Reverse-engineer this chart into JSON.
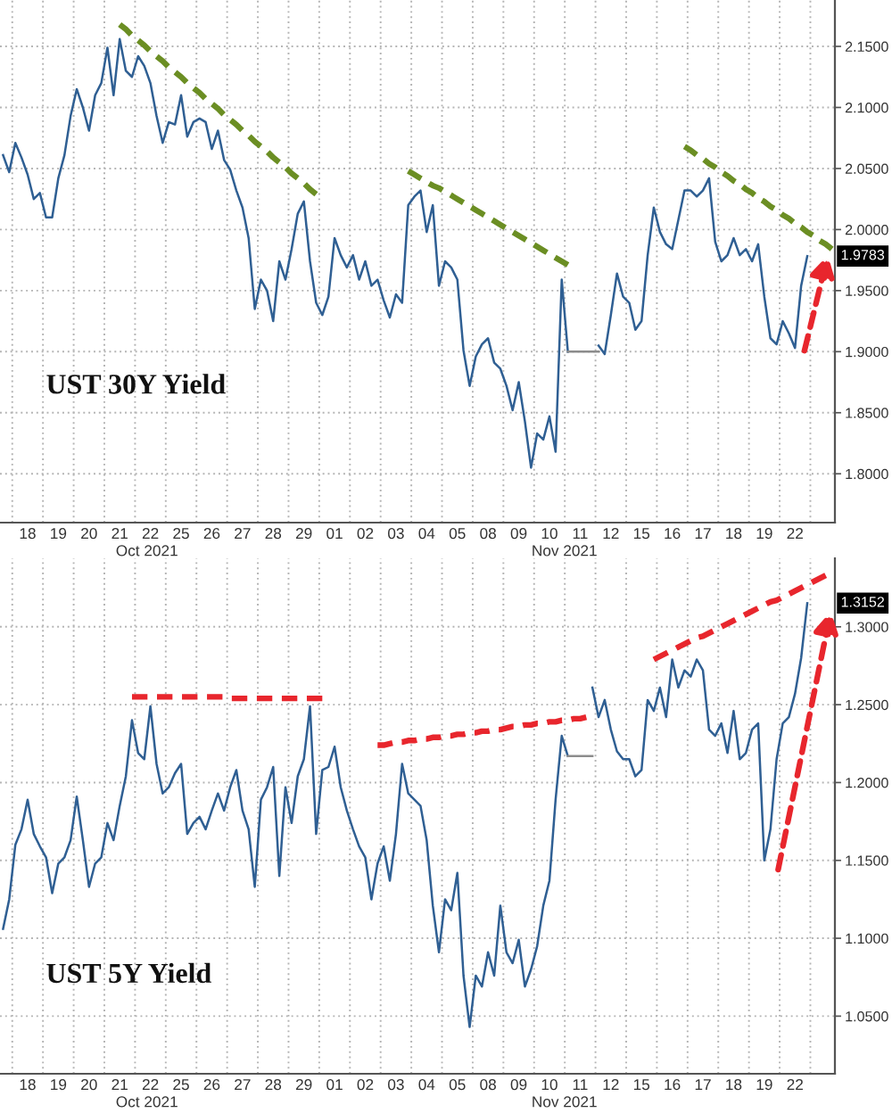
{
  "chart_data": [
    {
      "type": "line",
      "title": "UST 30Y Yield",
      "ylim": [
        1.76,
        2.188
      ],
      "grid": true,
      "categories": [
        null,
        null,
        null,
        null,
        "18",
        null,
        null,
        null,
        null,
        "19",
        null,
        null,
        null,
        null,
        "20",
        null,
        null,
        null,
        null,
        "21",
        null,
        null,
        null,
        null,
        "22",
        null,
        null,
        null,
        null,
        "25",
        null,
        null,
        null,
        null,
        "26",
        null,
        null,
        null,
        null,
        "27",
        null,
        null,
        null,
        null,
        "28",
        null,
        null,
        null,
        null,
        "29",
        null,
        null,
        null,
        null,
        "01",
        null,
        null,
        null,
        null,
        "02",
        null,
        null,
        null,
        null,
        "03",
        null,
        null,
        null,
        null,
        "04",
        null,
        null,
        null,
        null,
        "05",
        null,
        null,
        null,
        null,
        "08",
        null,
        null,
        null,
        null,
        "09",
        null,
        null,
        null,
        null,
        "10",
        null,
        null,
        null,
        null,
        "11",
        null,
        null,
        null,
        null,
        "12",
        null,
        null,
        null,
        null,
        "15",
        null,
        null,
        null,
        null,
        "16",
        null,
        null,
        null,
        null,
        "17",
        null,
        null,
        null,
        null,
        "18",
        null,
        null,
        null,
        null,
        "19",
        null,
        null,
        null,
        null,
        "22",
        null,
        null,
        null,
        null,
        null,
        null
      ],
      "yticks": [
        {
          "value": 1.8,
          "label": "1.8000"
        },
        {
          "value": 1.85,
          "label": "1.8500"
        },
        {
          "value": 1.9,
          "label": "1.9000"
        },
        {
          "value": 1.95,
          "label": "1.9500"
        },
        {
          "value": 2.0,
          "label": "2.0000"
        },
        {
          "value": 2.05,
          "label": "2.0500"
        },
        {
          "value": 2.1,
          "label": "2.1000"
        },
        {
          "value": 2.15,
          "label": "2.1500"
        }
      ],
      "annotations": [
        {
          "text": "1.9783",
          "y": 1.9783
        },
        "Oct 2021",
        "Nov 2021"
      ],
      "series": [
        {
          "color": "#2f5f93",
          "values": [
            2.061,
            2.047,
            2.071,
            2.059,
            2.045,
            2.025,
            2.03,
            2.01,
            2.01,
            2.042,
            2.061,
            2.093,
            2.115,
            2.1,
            2.081,
            2.11,
            2.12,
            2.149,
            2.11,
            2.156,
            2.13,
            2.125,
            2.142,
            2.134,
            2.12,
            2.093,
            2.071,
            2.088,
            2.086,
            2.11,
            2.076,
            2.088,
            2.091,
            2.088,
            2.066,
            2.081,
            2.057,
            2.049,
            2.032,
            2.018,
            1.993,
            1.935,
            1.959,
            1.95,
            1.925,
            1.974,
            1.959,
            1.984,
            2.013,
            2.023,
            1.974,
            1.94,
            1.93,
            1.945,
            1.993,
            1.979,
            1.969,
            1.979,
            1.959,
            1.974,
            1.954,
            1.959,
            1.942,
            1.928,
            1.947,
            1.94,
            2.02,
            2.027,
            2.032,
            1.998,
            2.02,
            1.954,
            1.974,
            1.969,
            1.959,
            1.901,
            1.872,
            1.896,
            1.906,
            1.911,
            1.891,
            1.886,
            1.872,
            1.852,
            1.875,
            1.843,
            1.805,
            1.833,
            1.828,
            1.847,
            1.818,
            1.959,
            1.9,
            null,
            null,
            null,
            null,
            1.905,
            1.898,
            1.93,
            1.964,
            1.945,
            1.94,
            1.918,
            1.925,
            1.979,
            2.018,
            1.998,
            1.988,
            1.984,
            2.008,
            2.032,
            2.032,
            2.027,
            2.032,
            2.042,
            1.99,
            1.974,
            1.979,
            1.993,
            1.979,
            1.984,
            1.974,
            1.988,
            1.945,
            1.911,
            1.906,
            1.925,
            1.915,
            1.903,
            1.954,
            1.9783,
            null,
            null,
            null,
            null
          ]
        },
        {
          "color": "#8c8c8c",
          "values": [
            null,
            null,
            null,
            null,
            null,
            null,
            null,
            null,
            null,
            null,
            null,
            null,
            null,
            null,
            null,
            null,
            null,
            null,
            null,
            null,
            null,
            null,
            null,
            null,
            null,
            null,
            null,
            null,
            null,
            null,
            null,
            null,
            null,
            null,
            null,
            null,
            null,
            null,
            null,
            null,
            null,
            null,
            null,
            null,
            null,
            null,
            null,
            null,
            null,
            null,
            null,
            null,
            null,
            null,
            null,
            null,
            null,
            null,
            null,
            null,
            null,
            null,
            null,
            null,
            null,
            null,
            null,
            null,
            null,
            null,
            null,
            null,
            null,
            null,
            null,
            null,
            null,
            null,
            null,
            null,
            null,
            null,
            null,
            null,
            null,
            null,
            null,
            null,
            null,
            null,
            null,
            null,
            1.9,
            1.9,
            1.9,
            1.9,
            1.9,
            1.9,
            null,
            null,
            null,
            null,
            null,
            null,
            null,
            null,
            null,
            null,
            null,
            null,
            null,
            null,
            null,
            null,
            null,
            null,
            null,
            null,
            null,
            null,
            null,
            null,
            null,
            null,
            null,
            null,
            null,
            null,
            null,
            null,
            null,
            null,
            null,
            null,
            null,
            null
          ]
        },
        {
          "color": "#6b8e23",
          "line_style": "dashed",
          "values": [
            null,
            null,
            null,
            null,
            null,
            null,
            null,
            null,
            null,
            null,
            null,
            null,
            null,
            null,
            null,
            null,
            null,
            null,
            null,
            2.168,
            2.164,
            2.159,
            2.155,
            2.151,
            2.146,
            2.142,
            2.138,
            2.133,
            2.129,
            2.125,
            2.12,
            2.116,
            2.112,
            2.107,
            2.103,
            2.099,
            2.094,
            2.09,
            2.086,
            2.081,
            2.077,
            2.072,
            2.068,
            2.064,
            2.059,
            2.055,
            2.051,
            2.046,
            2.042,
            2.038,
            2.033,
            2.029,
            null,
            null,
            null,
            null,
            null,
            null,
            null,
            null,
            null,
            null,
            null,
            null,
            null,
            null,
            null,
            null,
            null,
            null,
            null,
            null,
            null,
            null,
            null,
            null,
            null,
            null,
            null,
            null,
            null,
            null,
            null,
            null,
            null,
            null,
            null,
            null,
            null,
            null,
            null,
            null,
            null,
            null,
            null,
            null,
            null,
            null,
            null,
            null,
            null,
            null,
            null,
            null,
            null,
            null,
            null,
            null,
            null,
            null,
            null,
            null,
            null,
            null,
            null,
            null,
            null,
            null,
            null,
            null,
            null,
            null,
            null,
            null,
            null,
            null,
            null,
            null,
            null,
            null,
            null,
            null,
            null,
            null,
            null,
            null
          ]
        },
        {
          "color": "#6b8e23",
          "line_style": "dashed",
          "values": [
            null,
            null,
            null,
            null,
            null,
            null,
            null,
            null,
            null,
            null,
            null,
            null,
            null,
            null,
            null,
            null,
            null,
            null,
            null,
            null,
            null,
            null,
            null,
            null,
            null,
            null,
            null,
            null,
            null,
            null,
            null,
            null,
            null,
            null,
            null,
            null,
            null,
            null,
            null,
            null,
            null,
            null,
            null,
            null,
            null,
            null,
            null,
            null,
            null,
            null,
            null,
            null,
            null,
            null,
            null,
            null,
            null,
            null,
            null,
            null,
            null,
            null,
            null,
            null,
            null,
            null,
            2.048,
            2.045,
            2.042,
            2.039,
            2.036,
            2.034,
            2.031,
            2.028,
            2.025,
            2.022,
            2.019,
            2.016,
            2.013,
            2.01,
            2.007,
            2.004,
            2.001,
            1.998,
            1.995,
            1.992,
            1.989,
            1.986,
            1.983,
            1.98,
            1.977,
            1.974,
            1.971,
            null,
            null,
            null,
            null,
            null,
            null,
            null,
            null,
            null,
            null,
            null,
            null,
            null,
            null,
            null,
            null,
            null,
            null,
            null,
            null,
            null,
            null,
            null,
            null,
            null,
            null,
            null,
            null,
            null,
            null,
            null,
            null,
            null,
            null,
            null,
            null,
            null,
            null,
            null,
            null,
            null,
            null,
            null
          ]
        },
        {
          "color": "#6b8e23",
          "line_style": "dashed",
          "values": [
            null,
            null,
            null,
            null,
            null,
            null,
            null,
            null,
            null,
            null,
            null,
            null,
            null,
            null,
            null,
            null,
            null,
            null,
            null,
            null,
            null,
            null,
            null,
            null,
            null,
            null,
            null,
            null,
            null,
            null,
            null,
            null,
            null,
            null,
            null,
            null,
            null,
            null,
            null,
            null,
            null,
            null,
            null,
            null,
            null,
            null,
            null,
            null,
            null,
            null,
            null,
            null,
            null,
            null,
            null,
            null,
            null,
            null,
            null,
            null,
            null,
            null,
            null,
            null,
            null,
            null,
            null,
            null,
            null,
            null,
            null,
            null,
            null,
            null,
            null,
            null,
            null,
            null,
            null,
            null,
            null,
            null,
            null,
            null,
            null,
            null,
            null,
            null,
            null,
            null,
            null,
            null,
            null,
            null,
            null,
            null,
            null,
            null,
            null,
            null,
            null,
            null,
            null,
            null,
            null,
            null,
            null,
            null,
            null,
            null,
            null,
            2.068,
            2.065,
            2.061,
            2.058,
            2.054,
            2.051,
            2.047,
            2.044,
            2.04,
            2.037,
            2.033,
            2.03,
            2.026,
            2.023,
            2.019,
            2.016,
            2.012,
            2.009,
            2.005,
            2.002,
            1.998,
            1.995,
            1.991,
            1.988,
            1.984
          ]
        }
      ]
    },
    {
      "type": "line",
      "title": "UST 5Y Yield",
      "ylim": [
        1.013,
        1.344
      ],
      "grid": true,
      "categories": [
        null,
        null,
        null,
        null,
        "18",
        null,
        null,
        null,
        null,
        "19",
        null,
        null,
        null,
        null,
        "20",
        null,
        null,
        null,
        null,
        "21",
        null,
        null,
        null,
        null,
        "22",
        null,
        null,
        null,
        null,
        "25",
        null,
        null,
        null,
        null,
        "26",
        null,
        null,
        null,
        null,
        "27",
        null,
        null,
        null,
        null,
        "28",
        null,
        null,
        null,
        null,
        "29",
        null,
        null,
        null,
        null,
        "01",
        null,
        null,
        null,
        null,
        "02",
        null,
        null,
        null,
        null,
        "03",
        null,
        null,
        null,
        null,
        "04",
        null,
        null,
        null,
        null,
        "05",
        null,
        null,
        null,
        null,
        "08",
        null,
        null,
        null,
        null,
        "09",
        null,
        null,
        null,
        null,
        "10",
        null,
        null,
        null,
        null,
        "11",
        null,
        null,
        null,
        null,
        "12",
        null,
        null,
        null,
        null,
        "15",
        null,
        null,
        null,
        null,
        "16",
        null,
        null,
        null,
        null,
        "17",
        null,
        null,
        null,
        null,
        "18",
        null,
        null,
        null,
        null,
        "19",
        null,
        null,
        null,
        null,
        "22",
        null,
        null,
        null,
        null,
        null,
        null
      ],
      "yticks": [
        {
          "value": 1.05,
          "label": "1.0500"
        },
        {
          "value": 1.1,
          "label": "1.1000"
        },
        {
          "value": 1.15,
          "label": "1.1500"
        },
        {
          "value": 1.2,
          "label": "1.2000"
        },
        {
          "value": 1.25,
          "label": "1.2500"
        },
        {
          "value": 1.3,
          "label": "1.3000"
        }
      ],
      "annotations": [
        {
          "text": "1.3152",
          "y": 1.3152
        },
        "Oct 2021",
        "Nov 2021"
      ],
      "series": [
        {
          "color": "#2f5f93",
          "values": [
            1.106,
            1.125,
            1.16,
            1.17,
            1.189,
            1.167,
            1.159,
            1.152,
            1.129,
            1.148,
            1.152,
            1.163,
            1.191,
            1.163,
            1.133,
            1.148,
            1.152,
            1.174,
            1.163,
            1.185,
            1.204,
            1.24,
            1.219,
            1.215,
            1.249,
            1.212,
            1.193,
            1.197,
            1.206,
            1.212,
            1.167,
            1.174,
            1.178,
            1.17,
            1.182,
            1.193,
            1.182,
            1.197,
            1.208,
            1.182,
            1.17,
            1.133,
            1.189,
            1.197,
            1.21,
            1.14,
            1.197,
            1.174,
            1.204,
            1.215,
            1.249,
            1.167,
            1.208,
            1.21,
            1.223,
            1.197,
            1.182,
            1.17,
            1.159,
            1.152,
            1.125,
            1.148,
            1.159,
            1.137,
            1.167,
            1.212,
            1.193,
            1.189,
            1.185,
            1.163,
            1.121,
            1.091,
            1.125,
            1.118,
            1.142,
            1.076,
            1.043,
            1.076,
            1.069,
            1.091,
            1.076,
            1.121,
            1.091,
            1.084,
            1.099,
            1.069,
            1.08,
            1.095,
            1.121,
            1.137,
            1.189,
            1.23,
            1.217,
            null,
            null,
            null,
            1.261,
            1.242,
            1.253,
            1.234,
            1.22,
            1.215,
            1.215,
            1.204,
            1.208,
            1.253,
            1.246,
            1.261,
            1.242,
            1.279,
            1.261,
            1.272,
            1.268,
            1.279,
            1.272,
            1.234,
            1.23,
            1.238,
            1.219,
            1.246,
            1.215,
            1.219,
            1.234,
            1.238,
            1.15,
            1.17,
            1.215,
            1.238,
            1.242,
            1.257,
            1.28,
            1.3152,
            null,
            null,
            null,
            null
          ]
        },
        {
          "color": "#8c8c8c",
          "values": [
            null,
            null,
            null,
            null,
            null,
            null,
            null,
            null,
            null,
            null,
            null,
            null,
            null,
            null,
            null,
            null,
            null,
            null,
            null,
            null,
            null,
            null,
            null,
            null,
            null,
            null,
            null,
            null,
            null,
            null,
            null,
            null,
            null,
            null,
            null,
            null,
            null,
            null,
            null,
            null,
            null,
            null,
            null,
            null,
            null,
            null,
            null,
            null,
            null,
            null,
            null,
            null,
            null,
            null,
            null,
            null,
            null,
            null,
            null,
            null,
            null,
            null,
            null,
            null,
            null,
            null,
            null,
            null,
            null,
            null,
            null,
            null,
            null,
            null,
            null,
            null,
            null,
            null,
            null,
            null,
            null,
            null,
            null,
            null,
            null,
            null,
            null,
            null,
            null,
            null,
            null,
            null,
            1.217,
            1.217,
            1.217,
            1.217,
            1.217,
            null,
            null,
            null,
            null,
            null,
            null,
            null,
            null,
            null,
            null,
            null,
            null,
            null,
            null,
            null,
            null,
            null,
            null,
            null,
            null,
            null,
            null,
            null,
            null,
            null,
            null,
            null,
            null,
            null,
            null,
            null,
            null,
            null,
            null,
            null,
            null,
            null,
            null,
            null
          ]
        },
        {
          "color": "#e8262d",
          "line_style": "dashed",
          "values": [
            null,
            null,
            null,
            null,
            null,
            null,
            null,
            null,
            null,
            null,
            null,
            null,
            null,
            null,
            null,
            null,
            null,
            null,
            null,
            null,
            null,
            1.255,
            1.255,
            1.255,
            1.255,
            1.255,
            1.255,
            1.255,
            1.255,
            1.255,
            1.255,
            1.255,
            1.255,
            1.255,
            1.255,
            1.255,
            1.255,
            1.254,
            1.254,
            1.254,
            1.254,
            1.254,
            1.254,
            1.254,
            1.254,
            1.254,
            1.254,
            1.254,
            1.254,
            1.254,
            1.254,
            1.254,
            1.254,
            null,
            null,
            null,
            null,
            null,
            null,
            null,
            null,
            null,
            null,
            null,
            null,
            null,
            null,
            null,
            null,
            null,
            null,
            null,
            null,
            null,
            null,
            null,
            null,
            null,
            null,
            null,
            null,
            null,
            null,
            null,
            null,
            null,
            null,
            null,
            null,
            null,
            null,
            null,
            null,
            null,
            null,
            null,
            null,
            null,
            null,
            null,
            null,
            null,
            null,
            null,
            null,
            null,
            null,
            null,
            null,
            null,
            null,
            null,
            null,
            null,
            null,
            null,
            null,
            null,
            null,
            null,
            null,
            null,
            null,
            null,
            null,
            null,
            null,
            null,
            null,
            null,
            null,
            null,
            null,
            null,
            null,
            null
          ]
        },
        {
          "color": "#e8262d",
          "line_style": "dashed",
          "values": [
            null,
            null,
            null,
            null,
            null,
            null,
            null,
            null,
            null,
            null,
            null,
            null,
            null,
            null,
            null,
            null,
            null,
            null,
            null,
            null,
            null,
            null,
            null,
            null,
            null,
            null,
            null,
            null,
            null,
            null,
            null,
            null,
            null,
            null,
            null,
            null,
            null,
            null,
            null,
            null,
            null,
            null,
            null,
            null,
            null,
            null,
            null,
            null,
            null,
            null,
            null,
            null,
            null,
            null,
            null,
            null,
            null,
            null,
            null,
            null,
            null,
            1.224,
            1.224,
            1.225,
            1.226,
            1.226,
            1.227,
            1.227,
            1.228,
            1.228,
            1.229,
            1.229,
            1.23,
            1.23,
            1.231,
            1.231,
            1.232,
            1.232,
            1.233,
            1.233,
            1.234,
            1.234,
            1.235,
            1.236,
            1.236,
            1.237,
            1.237,
            1.238,
            1.238,
            1.239,
            1.239,
            1.24,
            1.24,
            1.241,
            1.241,
            1.242,
            null,
            null,
            null,
            null,
            null,
            null,
            null,
            null,
            null,
            null,
            null,
            null,
            null,
            null,
            null,
            null,
            null,
            null,
            null,
            null,
            null,
            null,
            null,
            null,
            null,
            null,
            null,
            null,
            null,
            null,
            null,
            null,
            null,
            null,
            null,
            null,
            null,
            null,
            null,
            null
          ]
        },
        {
          "color": "#e8262d",
          "line_style": "dashed",
          "values": [
            null,
            null,
            null,
            null,
            null,
            null,
            null,
            null,
            null,
            null,
            null,
            null,
            null,
            null,
            null,
            null,
            null,
            null,
            null,
            null,
            null,
            null,
            null,
            null,
            null,
            null,
            null,
            null,
            null,
            null,
            null,
            null,
            null,
            null,
            null,
            null,
            null,
            null,
            null,
            null,
            null,
            null,
            null,
            null,
            null,
            null,
            null,
            null,
            null,
            null,
            null,
            null,
            null,
            null,
            null,
            null,
            null,
            null,
            null,
            null,
            null,
            null,
            null,
            null,
            null,
            null,
            null,
            null,
            null,
            null,
            null,
            null,
            null,
            null,
            null,
            null,
            null,
            null,
            null,
            null,
            null,
            null,
            null,
            null,
            null,
            null,
            null,
            null,
            null,
            null,
            null,
            null,
            null,
            null,
            null,
            null,
            null,
            null,
            null,
            null,
            null,
            null,
            null,
            null,
            null,
            null,
            1.279,
            1.281,
            1.283,
            1.285,
            1.287,
            1.289,
            1.291,
            1.293,
            1.294,
            1.296,
            1.298,
            1.3,
            1.302,
            1.304,
            1.306,
            1.308,
            1.31,
            1.312,
            1.314,
            1.316,
            1.317,
            1.319,
            1.321,
            1.323,
            1.325,
            1.327,
            1.329,
            1.331,
            1.333,
            null
          ]
        }
      ]
    }
  ]
}
